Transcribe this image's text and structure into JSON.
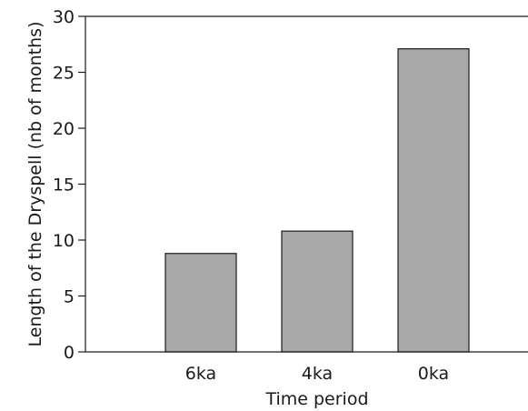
{
  "chart_data": {
    "type": "bar",
    "title": "",
    "xlabel": "Time period",
    "ylabel": "Length of the Dryspell (nb of months)",
    "categories": [
      "6ka",
      "4ka",
      "0ka"
    ],
    "values": [
      8.8,
      10.8,
      27.1
    ],
    "ylim": [
      0,
      30
    ],
    "yticks": [
      "0",
      "5",
      "10",
      "15",
      "20",
      "25",
      "30"
    ],
    "grid": false,
    "legend": "none",
    "bar_color": "#a8a8a8",
    "bar_edge_color": "#1a1a1a",
    "axis_color": "#1a1a1a"
  }
}
